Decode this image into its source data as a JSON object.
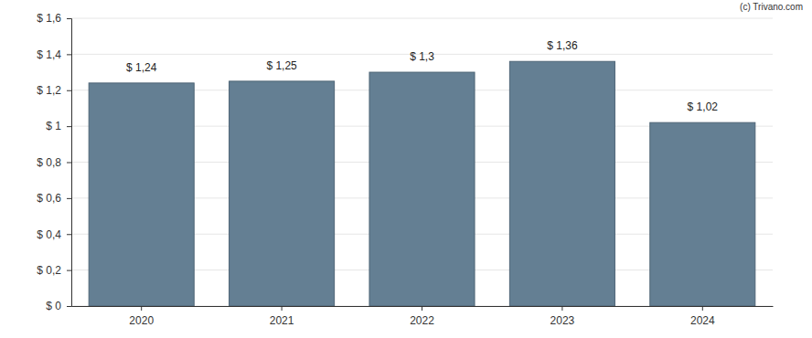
{
  "chart_data": {
    "type": "bar",
    "annotations": [
      "(c) Trivano.com"
    ],
    "categories": [
      "2020",
      "2021",
      "2022",
      "2023",
      "2024"
    ],
    "values": [
      1.24,
      1.25,
      1.3,
      1.36,
      1.02
    ],
    "value_labels": [
      "$ 1,24",
      "$ 1,25",
      "$ 1,3",
      "$ 1,36",
      "$ 1,02"
    ],
    "data_labels": true,
    "color": "#647f93",
    "ylim": [
      0,
      1.6
    ],
    "yticks": [
      {
        "value": 0,
        "label": "$ 0"
      },
      {
        "value": 0.2,
        "label": "$ 0,2"
      },
      {
        "value": 0.4,
        "label": "$ 0,4"
      },
      {
        "value": 0.6,
        "label": "$ 0,6"
      },
      {
        "value": 0.8,
        "label": "$ 0,8"
      },
      {
        "value": 1,
        "label": "$ 1"
      },
      {
        "value": 1.2,
        "label": "$ 1,2"
      },
      {
        "value": 1.4,
        "label": "$ 1,4"
      },
      {
        "value": 1.6,
        "label": "$ 1,6"
      }
    ],
    "grid": true
  }
}
